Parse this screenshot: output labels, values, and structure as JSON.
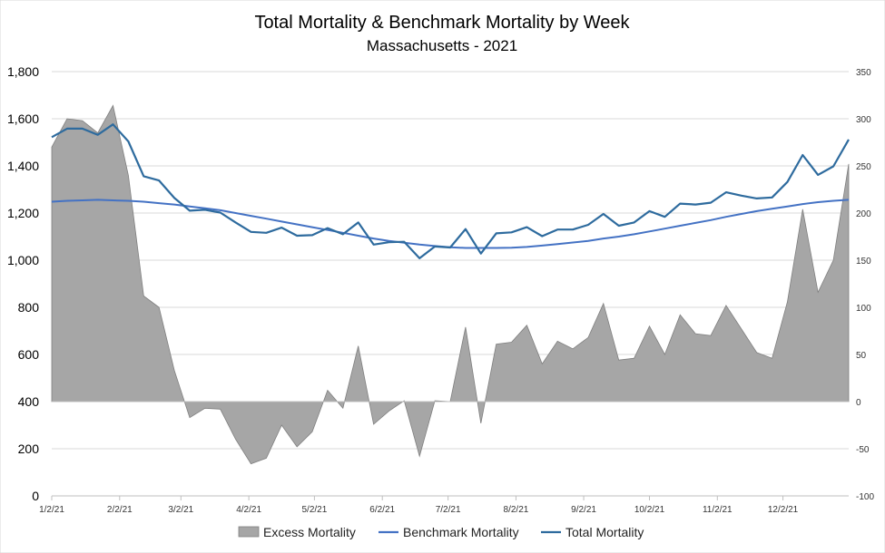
{
  "chart_data": {
    "type": "line",
    "title": "Total Mortality & Benchmark Mortality by Week",
    "subtitle": "Massachusetts - 2021",
    "left_axis": {
      "ticks": [
        0,
        200,
        400,
        600,
        800,
        1000,
        1200,
        1400,
        1600,
        1800
      ],
      "tick_labels": [
        "0",
        "200",
        "400",
        "600",
        "800",
        "1,000",
        "1,200",
        "1,400",
        "1,600",
        "1,800"
      ],
      "ylim": [
        0,
        1800
      ]
    },
    "right_axis": {
      "ticks": [
        -100,
        -50,
        0,
        50,
        100,
        150,
        200,
        250,
        300,
        350
      ],
      "tick_labels": [
        "-100",
        "-50",
        "0",
        "50",
        "100",
        "150",
        "200",
        "250",
        "300",
        "350"
      ],
      "ylim": [
        -100,
        350
      ]
    },
    "x_axis": {
      "range_weeks": [
        0,
        52
      ],
      "ticks": [
        0,
        4.43,
        8.43,
        12.86,
        17.14,
        21.57,
        25.86,
        30.29,
        34.71,
        39,
        43.43,
        47.71
      ],
      "tick_labels": [
        "1/2/21",
        "2/2/21",
        "3/2/21",
        "4/2/21",
        "5/2/21",
        "6/2/21",
        "7/2/21",
        "8/2/21",
        "9/2/21",
        "10/2/21",
        "11/2/21",
        "12/2/21"
      ]
    },
    "grid": true,
    "legend_position": "bottom",
    "series": [
      {
        "name": "Excess Mortality",
        "kind": "area",
        "axis": "right",
        "color": "#a6a6a6",
        "stroke": "#7f7f7f",
        "x": [
          0,
          1,
          2,
          3,
          4,
          5,
          6,
          7,
          8,
          9,
          10,
          11,
          12,
          13,
          14,
          15,
          16,
          17,
          18,
          19,
          20,
          21,
          22,
          23,
          24,
          25,
          26,
          27,
          28,
          29,
          30,
          31,
          32,
          33,
          34,
          35,
          36,
          37,
          38,
          39,
          40,
          41,
          42,
          43,
          44,
          45,
          46,
          47,
          48,
          49,
          50,
          51,
          52
        ],
        "values": [
          270,
          300,
          298,
          285,
          314,
          240,
          112,
          100,
          33,
          -17,
          -7,
          -8,
          -40,
          -66,
          -60,
          -25,
          -48,
          -32,
          12,
          -7,
          59,
          -24,
          -10,
          1,
          -58,
          1,
          0,
          79,
          -23,
          61,
          63,
          81,
          40,
          64,
          56,
          68,
          104,
          44,
          46,
          80,
          50,
          92,
          72,
          70,
          102,
          77,
          52,
          46,
          106,
          204,
          116,
          150,
          252
        ]
      },
      {
        "name": "Benchmark Mortality",
        "kind": "line",
        "axis": "left",
        "color": "#4472c4",
        "x": [
          0,
          1,
          2,
          3,
          4,
          5,
          6,
          7,
          8,
          9,
          10,
          11,
          12,
          13,
          14,
          15,
          16,
          17,
          18,
          19,
          20,
          21,
          22,
          23,
          24,
          25,
          26,
          27,
          28,
          29,
          30,
          31,
          32,
          33,
          34,
          35,
          36,
          37,
          38,
          39,
          40,
          41,
          42,
          43,
          44,
          45,
          46,
          47,
          48,
          49,
          50,
          51,
          52
        ],
        "values": [
          1248,
          1252,
          1254,
          1256,
          1254,
          1252,
          1248,
          1242,
          1236,
          1228,
          1220,
          1212,
          1200,
          1188,
          1176,
          1164,
          1152,
          1140,
          1128,
          1116,
          1104,
          1092,
          1082,
          1074,
          1066,
          1060,
          1055,
          1052,
          1052,
          1052,
          1053,
          1056,
          1062,
          1068,
          1075,
          1082,
          1092,
          1100,
          1110,
          1122,
          1134,
          1146,
          1158,
          1170,
          1184,
          1196,
          1208,
          1218,
          1228,
          1238,
          1246,
          1252,
          1256
        ]
      },
      {
        "name": "Total Mortality",
        "kind": "line",
        "axis": "left",
        "color": "#2e6b9e",
        "x": [
          0,
          1,
          2,
          3,
          4,
          5,
          6,
          7,
          8,
          9,
          10,
          11,
          12,
          13,
          14,
          15,
          16,
          17,
          18,
          19,
          20,
          21,
          22,
          23,
          24,
          25,
          26,
          27,
          28,
          29,
          30,
          31,
          32,
          33,
          34,
          35,
          36,
          37,
          38,
          39,
          40,
          41,
          42,
          43,
          44,
          45,
          46,
          47,
          48,
          49,
          50,
          51,
          52
        ],
        "values": [
          1522,
          1558,
          1558,
          1532,
          1576,
          1504,
          1356,
          1338,
          1264,
          1210,
          1214,
          1202,
          1160,
          1120,
          1116,
          1138,
          1104,
          1106,
          1136,
          1110,
          1160,
          1066,
          1076,
          1078,
          1008,
          1058,
          1054,
          1132,
          1028,
          1114,
          1118,
          1140,
          1102,
          1130,
          1130,
          1150,
          1196,
          1146,
          1160,
          1208,
          1184,
          1240,
          1236,
          1244,
          1288,
          1274,
          1262,
          1266,
          1332,
          1446,
          1362,
          1398,
          1512
        ]
      }
    ]
  }
}
